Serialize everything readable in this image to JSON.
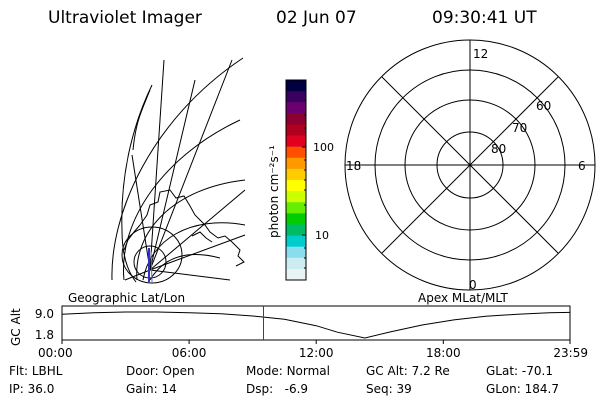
{
  "header": {
    "instrument": "Ultraviolet Imager",
    "date": "02 Jun 07",
    "time": "09:30:41 UT"
  },
  "colorbar": {
    "label": "photon cm⁻²s⁻¹",
    "ticks": [
      "100",
      "10"
    ],
    "colors": [
      "#000040",
      "#3a0060",
      "#6a0070",
      "#8b0030",
      "#b00020",
      "#e00020",
      "#ff5000",
      "#ff9900",
      "#ffcc00",
      "#ffff00",
      "#ccff00",
      "#66ee00",
      "#00cc00",
      "#00bb66",
      "#00cccc",
      "#88ddee",
      "#ccecf0",
      "#e8f4f4"
    ]
  },
  "geo_map": {
    "label": "Geographic Lat/Lon"
  },
  "polar_plot": {
    "label": "Apex MLat/MLT",
    "mlt_labels": {
      "top": "12",
      "bottom": "0",
      "left": "18",
      "right": "6"
    },
    "lat_labels": [
      "60",
      "70",
      "80"
    ]
  },
  "timeline": {
    "ylabel": "GC Alt",
    "y_top": "9.0",
    "y_bottom": "1.8",
    "xticks": [
      "00:00",
      "06:00",
      "12:00",
      "18:00",
      "23:59"
    ],
    "marker_color": "#e00000"
  },
  "chart_data": {
    "type": "line",
    "title": "Ultraviolet Imager",
    "ylabel": "GC Alt",
    "xlabel": "",
    "ylim": [
      1.8,
      9.0
    ],
    "xlim_hours": [
      0,
      23.98
    ],
    "series": [
      {
        "x_hours": [
          0,
          1.5,
          3,
          4.5,
          6,
          7.5,
          9,
          10.5,
          12,
          13,
          14.3,
          15.5,
          17,
          18.5,
          20,
          21.5,
          23,
          23.98
        ],
        "values": [
          8.4,
          8.8,
          9.0,
          9.0,
          8.8,
          8.5,
          7.9,
          7.0,
          5.2,
          3.4,
          1.8,
          3.5,
          5.4,
          6.8,
          7.8,
          8.4,
          8.8,
          8.9
        ]
      }
    ],
    "marker_time_hours": 9.51,
    "marker_time": "09:30:41",
    "grid": false
  },
  "status": {
    "flt_label": "Flt:",
    "flt_value": "LBHL",
    "ip_label": "IP:",
    "ip_value": "36.0",
    "door_label": "Door:",
    "door_value": "Open",
    "gain_label": "Gain:",
    "gain_value": "14",
    "mode_label": "Mode:",
    "mode_value": "Normal",
    "dsp_label": "Dsp:",
    "dsp_value": "-6.9",
    "gcalt_label": "GC Alt:",
    "gcalt_value": "7.2 Re",
    "seq_label": "Seq:",
    "seq_value": "39",
    "glat_label": "GLat:",
    "glat_value": "-70.1",
    "glon_label": "GLon:",
    "glon_value": "184.7"
  }
}
